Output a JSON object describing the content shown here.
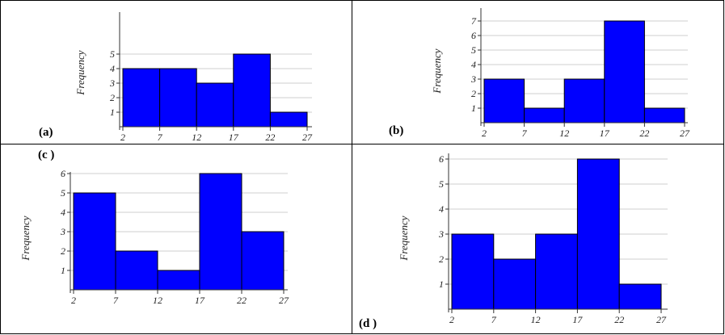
{
  "chart_data": [
    {
      "type": "bar",
      "panel_label": "(a)",
      "ylabel": "Frequency",
      "x_ticks": [
        2,
        7,
        12,
        17,
        22,
        27
      ],
      "bins": [
        [
          2,
          7
        ],
        [
          7,
          12
        ],
        [
          12,
          17
        ],
        [
          17,
          22
        ],
        [
          22,
          27
        ]
      ],
      "values": [
        4,
        4,
        3,
        5,
        1
      ],
      "y_ticks": [
        1,
        2,
        3,
        4,
        5
      ],
      "y_tick_labels": [
        "1",
        "2",
        "3",
        "4",
        "5"
      ],
      "ylim": [
        0,
        5.4
      ],
      "grid": true,
      "bar_color": "#0000ff"
    },
    {
      "type": "bar",
      "panel_label": "(b)",
      "ylabel": "Frequency",
      "x_ticks": [
        2,
        7,
        12,
        17,
        22,
        27
      ],
      "bins": [
        [
          2,
          7
        ],
        [
          7,
          12
        ],
        [
          12,
          17
        ],
        [
          17,
          22
        ],
        [
          22,
          27
        ]
      ],
      "values": [
        3,
        1,
        3,
        7,
        1
      ],
      "y_ticks": [
        1,
        2,
        3,
        4,
        5,
        6,
        7
      ],
      "y_tick_labels": [
        "1",
        "2",
        "3",
        "4",
        "5",
        "6",
        "7"
      ],
      "ylim": [
        0,
        7.4
      ],
      "grid": true,
      "bar_color": "#0000ff"
    },
    {
      "type": "bar",
      "panel_label": "(c )",
      "ylabel": "Frequency",
      "x_ticks": [
        2,
        7,
        12,
        17,
        22,
        27
      ],
      "bins": [
        [
          2,
          7
        ],
        [
          7,
          12
        ],
        [
          12,
          17
        ],
        [
          17,
          22
        ],
        [
          22,
          27
        ]
      ],
      "values": [
        5,
        2,
        1,
        6,
        3
      ],
      "y_ticks": [
        1,
        2,
        3,
        4,
        5,
        6
      ],
      "y_tick_labels": [
        "1",
        "2",
        "3",
        "4",
        "5",
        "6"
      ],
      "ylim": [
        0,
        6.4
      ],
      "grid": true,
      "bar_color": "#0000ff"
    },
    {
      "type": "bar",
      "panel_label": "(d )",
      "ylabel": "Frequency",
      "x_ticks": [
        2,
        7,
        12,
        17,
        22,
        27
      ],
      "bins": [
        [
          2,
          7
        ],
        [
          7,
          12
        ],
        [
          12,
          17
        ],
        [
          17,
          22
        ],
        [
          22,
          27
        ]
      ],
      "values": [
        3,
        2,
        3,
        6,
        1
      ],
      "y_ticks": [
        1,
        2,
        3,
        4,
        5,
        6
      ],
      "y_tick_labels": [
        "1",
        "2",
        "3",
        "4",
        "5",
        "6"
      ],
      "ylim": [
        0,
        6.4
      ],
      "grid": true,
      "bar_color": "#0000ff"
    }
  ]
}
